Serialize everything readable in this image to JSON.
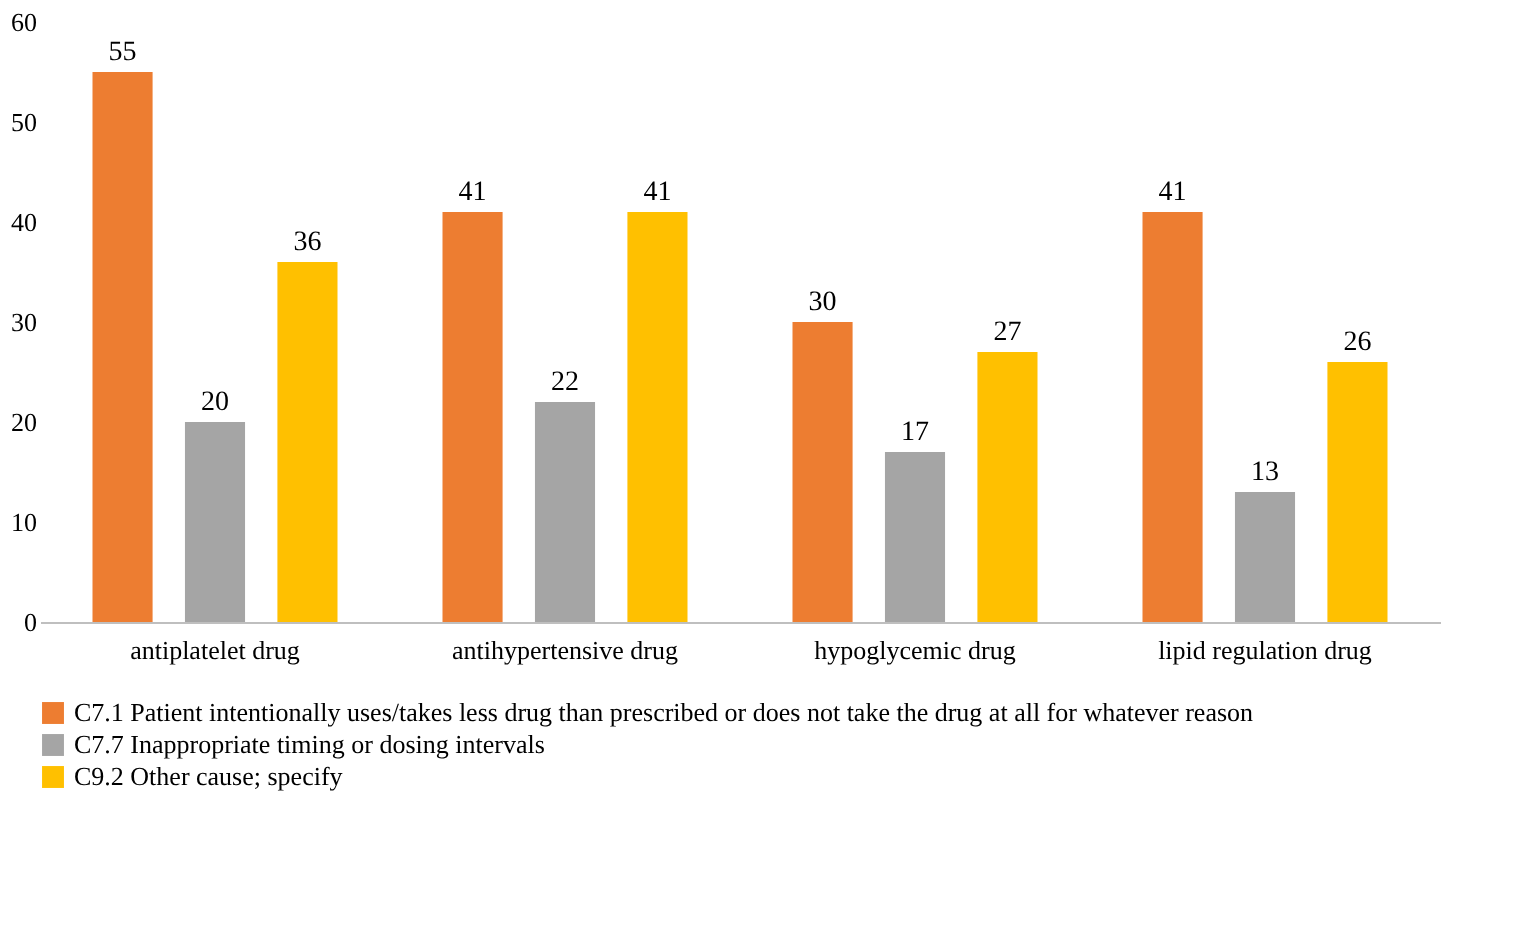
{
  "chart_data": {
    "type": "bar",
    "categories": [
      "antiplatelet drug",
      "antihypertensive drug",
      "hypoglycemic drug",
      "lipid regulation drug"
    ],
    "series": [
      {
        "name": "C7.1 Patient intentionally uses/takes less drug than prescribed or does not take the drug at all for whatever reason",
        "color": "#ed7d31",
        "values": [
          55,
          41,
          30,
          41
        ]
      },
      {
        "name": "C7.7 Inappropriate timing or dosing intervals",
        "color": "#a5a5a5",
        "values": [
          20,
          22,
          17,
          13
        ]
      },
      {
        "name": "C9.2 Other cause; specify",
        "color": "#ffc000",
        "values": [
          36,
          41,
          27,
          26
        ]
      }
    ],
    "ylim": [
      0,
      60
    ],
    "yticks": [
      0,
      10,
      20,
      30,
      40,
      50,
      60
    ],
    "grid": false,
    "legend": "bottom",
    "data_labels": true
  }
}
